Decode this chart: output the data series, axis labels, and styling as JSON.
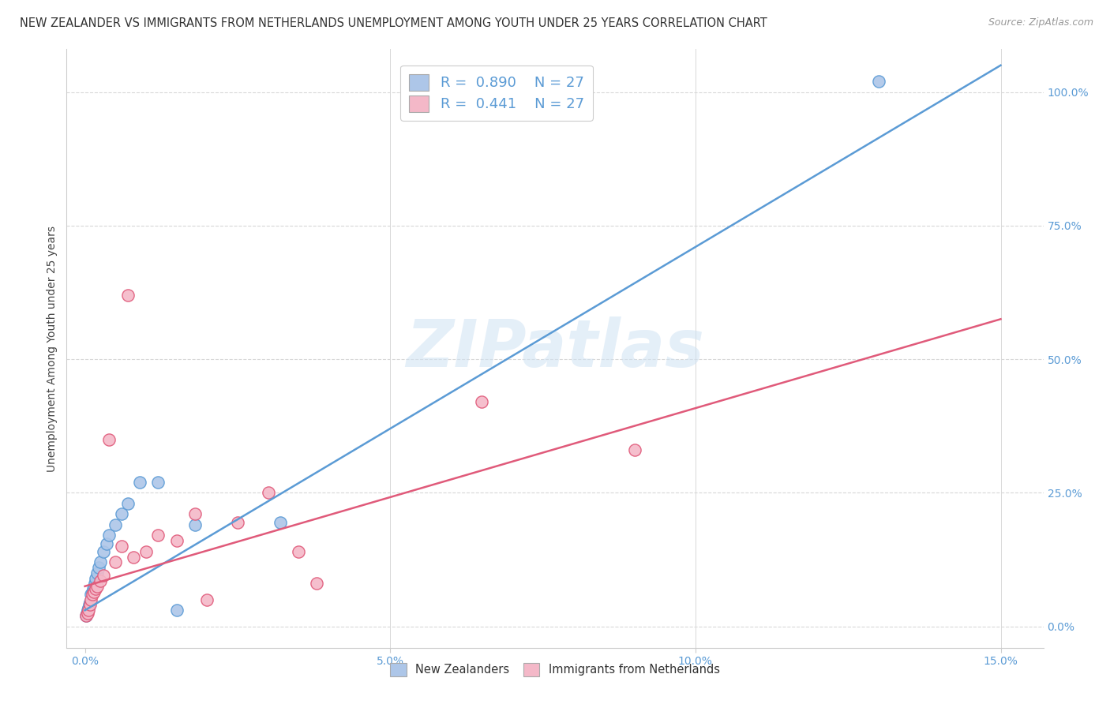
{
  "title": "NEW ZEALANDER VS IMMIGRANTS FROM NETHERLANDS UNEMPLOYMENT AMONG YOUTH UNDER 25 YEARS CORRELATION CHART",
  "source": "Source: ZipAtlas.com",
  "ylabel": "Unemployment Among Youth under 25 years",
  "nz_color": "#adc6e8",
  "nz_line_color": "#5b9bd5",
  "nl_color": "#f4b8c8",
  "nl_line_color": "#e05a7a",
  "watermark_text": "ZIPatlas",
  "legend_R_nz": "0.890",
  "legend_N_nz": "27",
  "legend_R_nl": "0.441",
  "legend_N_nl": "27",
  "legend_label_nz": "New Zealanders",
  "legend_label_nl": "Immigrants from Netherlands",
  "nz_x": [
    0.0002,
    0.0003,
    0.0005,
    0.0006,
    0.0007,
    0.0008,
    0.001,
    0.0012,
    0.0014,
    0.0015,
    0.0016,
    0.0018,
    0.002,
    0.0022,
    0.0025,
    0.003,
    0.0035,
    0.004,
    0.005,
    0.006,
    0.007,
    0.009,
    0.012,
    0.015,
    0.018,
    0.032,
    0.13
  ],
  "nz_y": [
    0.02,
    0.025,
    0.03,
    0.035,
    0.04,
    0.045,
    0.06,
    0.065,
    0.07,
    0.075,
    0.08,
    0.09,
    0.1,
    0.11,
    0.12,
    0.14,
    0.155,
    0.17,
    0.19,
    0.21,
    0.23,
    0.27,
    0.27,
    0.03,
    0.19,
    0.195,
    1.02
  ],
  "nl_x": [
    0.0002,
    0.0004,
    0.0006,
    0.0008,
    0.001,
    0.0012,
    0.0015,
    0.0018,
    0.002,
    0.0025,
    0.003,
    0.004,
    0.005,
    0.006,
    0.007,
    0.008,
    0.01,
    0.012,
    0.015,
    0.018,
    0.02,
    0.025,
    0.03,
    0.035,
    0.038,
    0.065,
    0.09
  ],
  "nl_y": [
    0.02,
    0.025,
    0.03,
    0.04,
    0.05,
    0.06,
    0.065,
    0.07,
    0.075,
    0.085,
    0.095,
    0.35,
    0.12,
    0.15,
    0.62,
    0.13,
    0.14,
    0.17,
    0.16,
    0.21,
    0.05,
    0.195,
    0.25,
    0.14,
    0.08,
    0.42,
    0.33
  ],
  "nz_trendline_x0": 0.0,
  "nz_trendline_y0": 0.03,
  "nz_trendline_x1": 0.15,
  "nz_trendline_y1": 1.05,
  "nl_trendline_x0": 0.0,
  "nl_trendline_y0": 0.075,
  "nl_trendline_x1": 0.15,
  "nl_trendline_y1": 0.575,
  "xmin": -0.003,
  "xmax": 0.157,
  "ymin": -0.04,
  "ymax": 1.08,
  "title_fontsize": 10.5,
  "source_fontsize": 9,
  "label_fontsize": 10,
  "tick_fontsize": 10,
  "legend_fontsize": 13,
  "marker_size": 120
}
